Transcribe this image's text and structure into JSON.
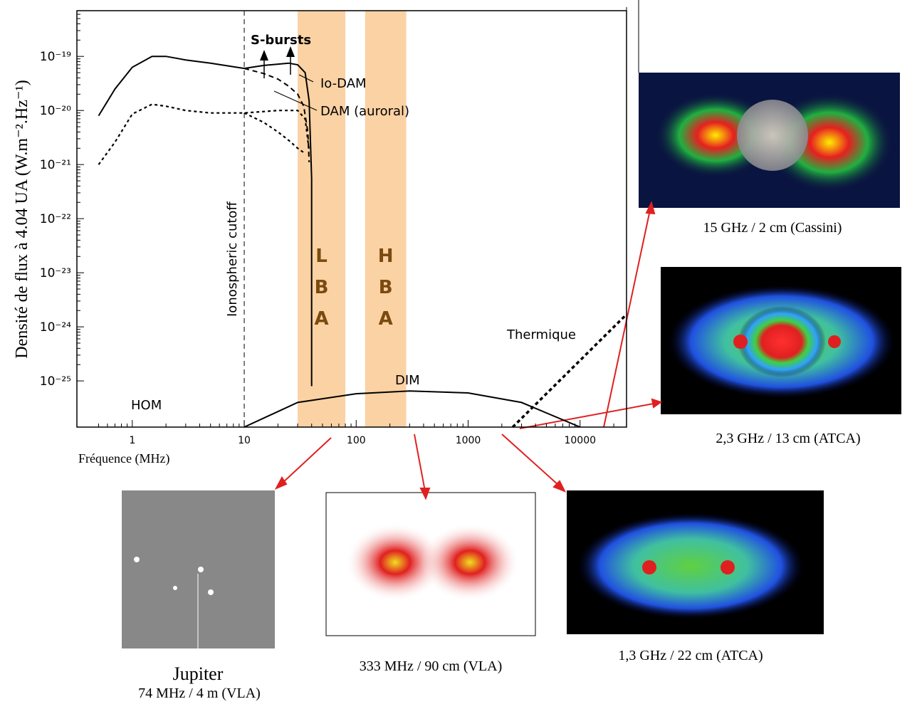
{
  "chart_data": {
    "type": "line",
    "y_label": "Densité de flux à 4.04 UA (W.m⁻².Hz⁻¹)",
    "x_label": "Fréquence (MHz)",
    "log_x": true,
    "log_y": true,
    "xlim": [
      0.32,
      26000
    ],
    "ylim": [
      1.4e-26,
      7e-19
    ],
    "xticks": [
      1,
      10,
      100,
      1000,
      10000
    ],
    "yticks": [
      {
        "value": 1e-19,
        "label": "10⁻¹⁹"
      },
      {
        "value": 1e-20,
        "label": "10⁻²⁰"
      },
      {
        "value": 1e-21,
        "label": "10⁻²¹"
      },
      {
        "value": 1e-22,
        "label": "10⁻²²"
      },
      {
        "value": 1e-23,
        "label": "10⁻²³"
      },
      {
        "value": 1e-24,
        "label": "10⁻²⁴"
      },
      {
        "value": 1e-25,
        "label": "10⁻²⁵"
      }
    ],
    "series": [
      {
        "color": "#000000",
        "style": "solid",
        "x": [
          0.5,
          0.7,
          1,
          1.5,
          2,
          3,
          5,
          10,
          15,
          20,
          25,
          30,
          35,
          38,
          40,
          40
        ],
        "values": [
          8e-21,
          2.5e-20,
          6.3e-20,
          1e-19,
          1e-19,
          8.6e-20,
          7.5e-20,
          6e-20,
          6.8e-20,
          7.2e-20,
          7.5e-20,
          7e-20,
          5e-20,
          1.5e-20,
          5.5e-22,
          8e-26
        ]
      },
      {
        "color": "#000000",
        "style": "dashed",
        "x": [
          10,
          15,
          20,
          25,
          30,
          34,
          37,
          38
        ],
        "values": [
          6e-20,
          4.8e-20,
          3.8e-20,
          2.8e-20,
          2e-20,
          1.2e-20,
          4e-21,
          1.1e-21
        ]
      },
      {
        "color": "#000000",
        "style": "dotted",
        "x": [
          0.5,
          0.7,
          1,
          1.5,
          2,
          3,
          5,
          10,
          20,
          30,
          35,
          38
        ],
        "values": [
          1e-21,
          2.6e-21,
          8.6e-21,
          1.3e-20,
          1.2e-20,
          1e-20,
          9e-21,
          9e-21,
          1e-20,
          1e-20,
          7e-21,
          1.8e-21
        ]
      },
      {
        "color": "#000000",
        "style": "dotted",
        "x": [
          10,
          15,
          20,
          25,
          30,
          35
        ],
        "values": [
          9e-21,
          6e-21,
          4e-21,
          2.8e-21,
          2e-21,
          1.6e-21
        ]
      },
      {
        "color": "#000000",
        "style": "solid",
        "x": [
          10,
          30,
          100,
          300,
          1000,
          3000,
          10000
        ],
        "values": [
          1.4e-26,
          4e-26,
          5.8e-26,
          6.5e-26,
          6e-26,
          4e-26,
          1.4e-26
        ]
      },
      {
        "color": "#000000",
        "style": "dotted-thick",
        "x": [
          2500,
          26000
        ],
        "values": [
          1.4e-26,
          1.7e-24
        ]
      }
    ],
    "bands": [
      {
        "label": "LBA",
        "range": [
          30,
          80
        ],
        "color": "#fbd2a3"
      },
      {
        "label": "HBA",
        "range": [
          120,
          280
        ],
        "color": "#fbd2a3"
      }
    ],
    "cutoff": {
      "label": "Ionospheric cutoff",
      "x": 10
    },
    "annotations": [
      "S-bursts",
      "Io-DAM",
      "DAM (auroral)",
      "HOM",
      "DIM",
      "Thermique"
    ]
  },
  "images": [
    {
      "caption": "15 GHz / 2 cm (Cassini)"
    },
    {
      "caption": "2,3 GHz / 13 cm (ATCA)"
    },
    {
      "caption": "1,3 GHz / 22 cm (ATCA)"
    },
    {
      "caption": "333 MHz / 90 cm (VLA)"
    },
    {
      "caption": "74 MHz / 4 m (VLA)",
      "label": "Jupiter"
    }
  ]
}
